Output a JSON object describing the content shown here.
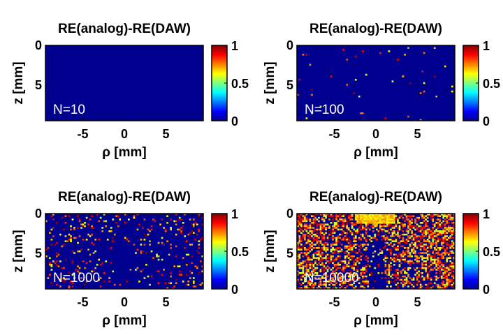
{
  "figure": {
    "colors": {
      "background": "#ffffff",
      "colormap": "jet",
      "low": "#00008f",
      "mid": "#7fff7f",
      "high": "#800000",
      "annotation": "#ffffff"
    }
  },
  "chart_data": [
    {
      "type": "heatmap",
      "title": "RE(analog)-RE(DAW)",
      "xlabel": "ρ [mm]",
      "ylabel": "z [mm]",
      "annotation": "N=10",
      "xlim": [
        -9.5,
        9.5
      ],
      "ylim": [
        0,
        9.5
      ],
      "y_reversed": true,
      "xticks": [
        -5,
        0,
        5
      ],
      "yticks": [
        0,
        5
      ],
      "colorbar": {
        "clim": [
          0,
          1
        ],
        "ticks": [
          0,
          0.5,
          1
        ]
      },
      "grid": false,
      "density": 0.0
    },
    {
      "type": "heatmap",
      "title": "RE(analog)-RE(DAW)",
      "xlabel": "ρ [mm]",
      "ylabel": "z [mm]",
      "annotation": "N=100",
      "xlim": [
        -9.5,
        9.5
      ],
      "ylim": [
        0,
        9.5
      ],
      "y_reversed": true,
      "xticks": [
        -5,
        0,
        5
      ],
      "yticks": [
        0,
        5
      ],
      "colorbar": {
        "clim": [
          0,
          1
        ],
        "ticks": [
          0,
          0.5,
          1
        ]
      },
      "grid": false,
      "density": 0.012
    },
    {
      "type": "heatmap",
      "title": "RE(analog)-RE(DAW)",
      "xlabel": "ρ [mm]",
      "ylabel": "z [mm]",
      "annotation": "N=1000",
      "xlim": [
        -9.5,
        9.5
      ],
      "ylim": [
        0,
        9.5
      ],
      "y_reversed": true,
      "xticks": [
        -5,
        0,
        5
      ],
      "yticks": [
        0,
        5
      ],
      "colorbar": {
        "clim": [
          0,
          1
        ],
        "ticks": [
          0,
          0.5,
          1
        ]
      },
      "grid": false,
      "density": 0.1
    },
    {
      "type": "heatmap",
      "title": "RE(analog)-RE(DAW)",
      "xlabel": "ρ [mm]",
      "ylabel": "z [mm]",
      "annotation": "N=10000",
      "xlim": [
        -9.5,
        9.5
      ],
      "ylim": [
        0,
        9.5
      ],
      "y_reversed": true,
      "xticks": [
        -5,
        0,
        5
      ],
      "yticks": [
        0,
        5
      ],
      "colorbar": {
        "clim": [
          0,
          1
        ],
        "ticks": [
          0,
          0.5,
          1
        ]
      },
      "grid": false,
      "density": 0.55
    }
  ]
}
